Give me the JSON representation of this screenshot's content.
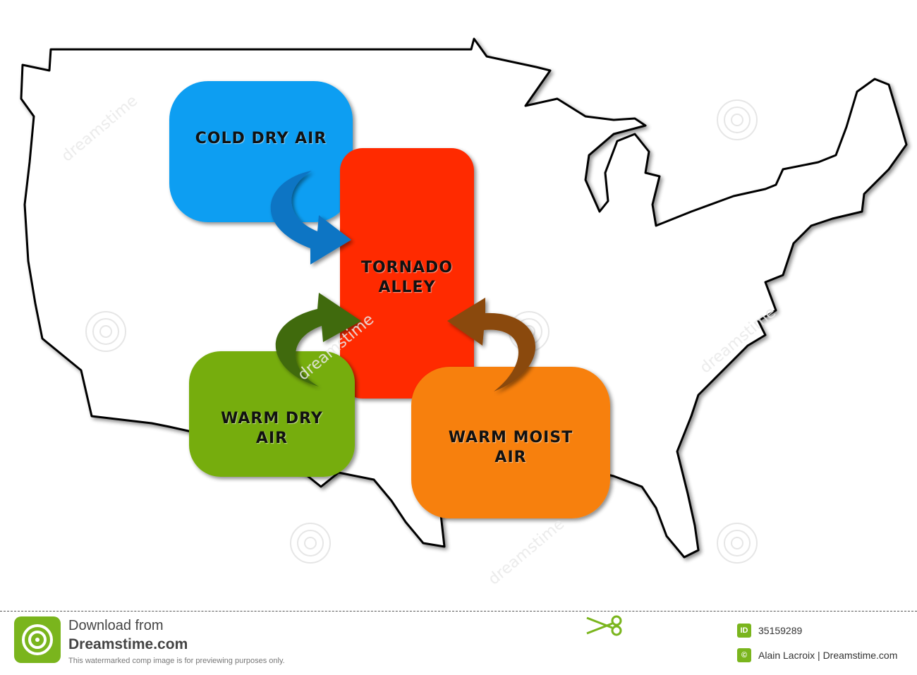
{
  "diagram": {
    "boxes": {
      "cold": {
        "label": "COLD DRY AIR",
        "color": "#0a9ef2"
      },
      "tornado": {
        "label": "TORNADO\nALLEY",
        "color": "#ff2a00"
      },
      "warm_dry": {
        "label": "WARM DRY\nAIR",
        "color": "#76ad0e"
      },
      "warm_moist": {
        "label": "WARM MOIST\nAIR",
        "color": "#f7800a"
      }
    },
    "arrow_colors": {
      "cold": "#1174c4",
      "warm_dry": "#3f6b10",
      "warm_moist": "#8a4a10"
    },
    "watermark_text": "dreamstime"
  },
  "footer": {
    "download_from": "Download from",
    "site": "Dreamstime.com",
    "note": "This watermarked comp image is for previewing purposes only.",
    "id_badge": "ID",
    "image_id": "35159289",
    "credit_badge": "©",
    "credit": "Alain Lacroix | Dreamstime.com"
  }
}
